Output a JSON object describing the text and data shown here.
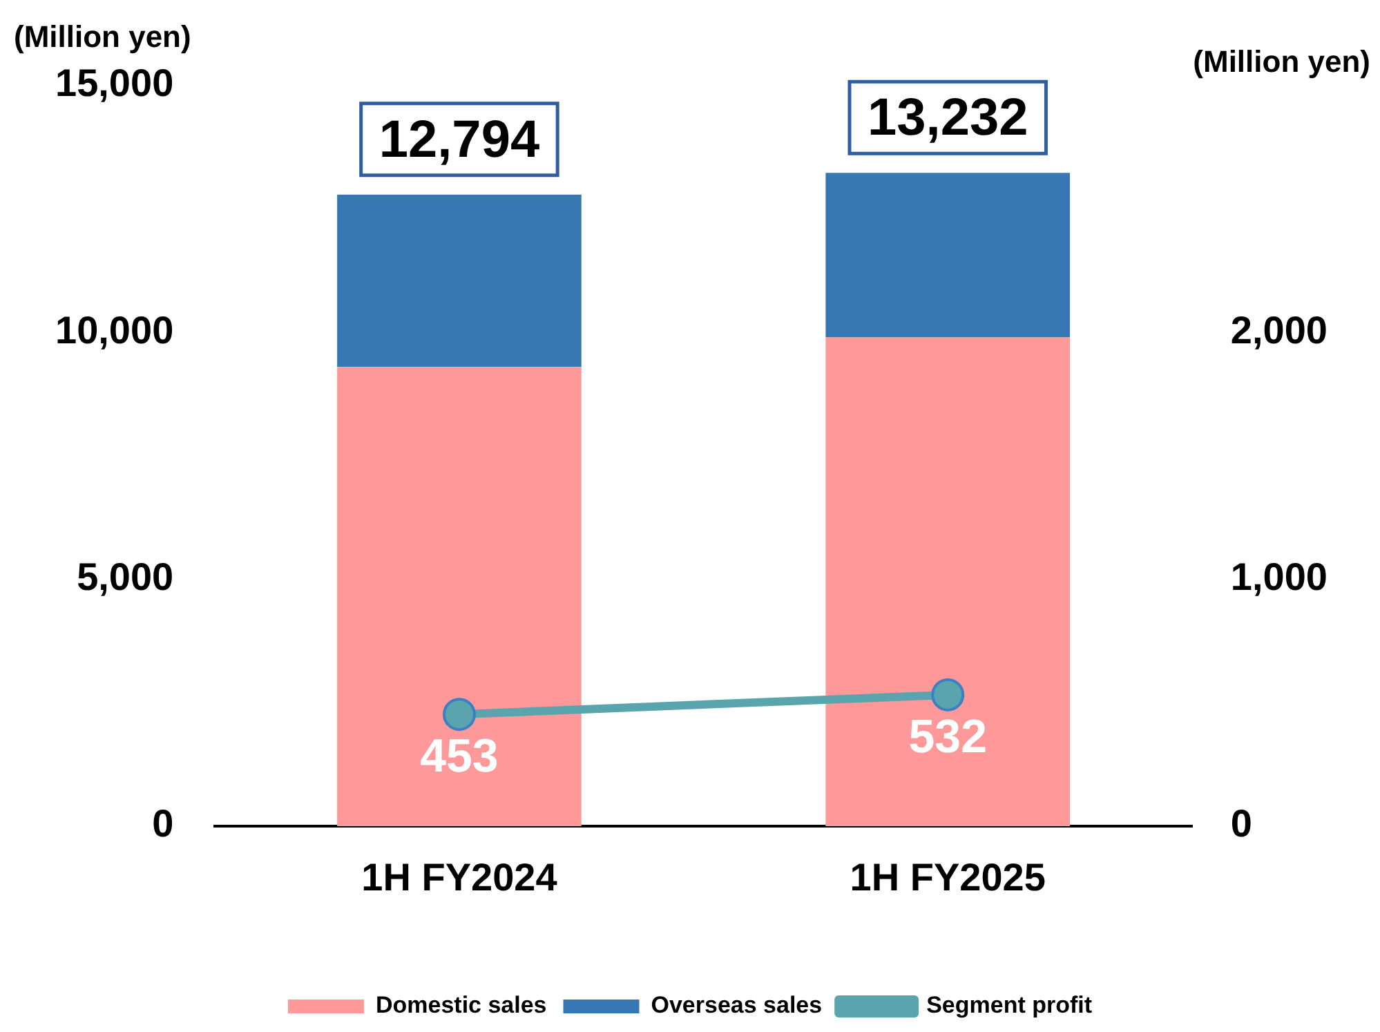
{
  "chart_data": {
    "type": "bar",
    "stacked": true,
    "ylabel": "(Million yen)",
    "y2label": "(Million yen)",
    "categories": [
      "1H FY2024",
      "1H FY2025"
    ],
    "series": [
      {
        "name": "Domestic sales",
        "color": "#ff9999",
        "values": [
          9300,
          9900
        ]
      },
      {
        "name": "Overseas sales",
        "color": "#3778b4",
        "values": [
          3494,
          3332
        ]
      },
      {
        "name": "Segment profit",
        "type": "line",
        "axis": "y2",
        "color": "#5aa5ad",
        "marker": "circle",
        "values": [
          453,
          532
        ],
        "value_labels": [
          "453",
          "532"
        ]
      }
    ],
    "totals": [
      "12,794",
      "13,232"
    ],
    "ylim": [
      0,
      15000
    ],
    "yticks": [
      0,
      {
        "value": 5000,
        "label": "5,000"
      },
      {
        "value": 10000,
        "label": "10,000"
      },
      {
        "value": 15000,
        "label": "15,000"
      }
    ],
    "y2lim": [
      0,
      3000
    ],
    "y2ticks": [
      0,
      {
        "value": 1000,
        "label": "1,000"
      },
      {
        "value": 2000,
        "label": "2,000"
      }
    ],
    "grid": false,
    "legend": "bottom"
  }
}
